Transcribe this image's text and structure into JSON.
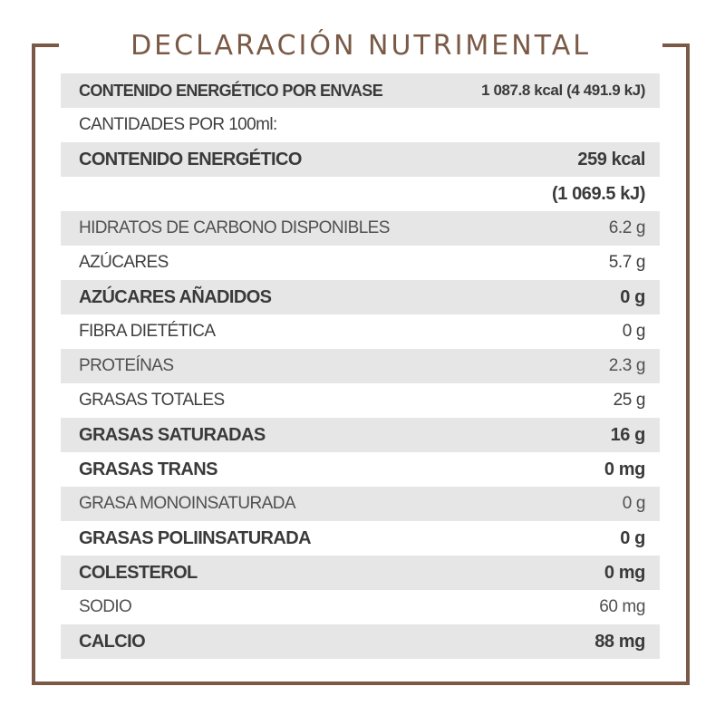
{
  "title": "DECLARACIÓN NUTRIMENTAL",
  "rows": [
    {
      "label": "CONTENIDO ENERGÉTICO POR ENVASE",
      "value": "1 087.8 kcal (4 491.9 kJ)"
    },
    {
      "label": "CANTIDADES POR 100ml:",
      "value": ""
    },
    {
      "label": "CONTENIDO ENERGÉTICO",
      "value": "259 kcal"
    },
    {
      "label": "",
      "value": "(1 069.5 kJ)"
    },
    {
      "label": "HIDRATOS DE CARBONO DISPONIBLES",
      "value": "6.2 g"
    },
    {
      "label": "AZÚCARES",
      "value": "5.7 g"
    },
    {
      "label": "AZÚCARES AÑADIDOS",
      "value": "0 g"
    },
    {
      "label": "FIBRA DIETÉTICA",
      "value": "0 g"
    },
    {
      "label": "PROTEÍNAS",
      "value": "2.3 g"
    },
    {
      "label": "GRASAS TOTALES",
      "value": "25 g"
    },
    {
      "label": "GRASAS SATURADAS",
      "value": "16 g"
    },
    {
      "label": "GRASAS TRANS",
      "value": "0 mg"
    },
    {
      "label": "GRASA MONOINSATURADA",
      "value": "0 g"
    },
    {
      "label": "GRASAS POLIINSATURADA",
      "value": "0 g"
    },
    {
      "label": "COLESTEROL",
      "value": "0 mg"
    },
    {
      "label": "SODIO",
      "value": "60 mg"
    },
    {
      "label": "CALCIO",
      "value": "88 mg"
    }
  ]
}
